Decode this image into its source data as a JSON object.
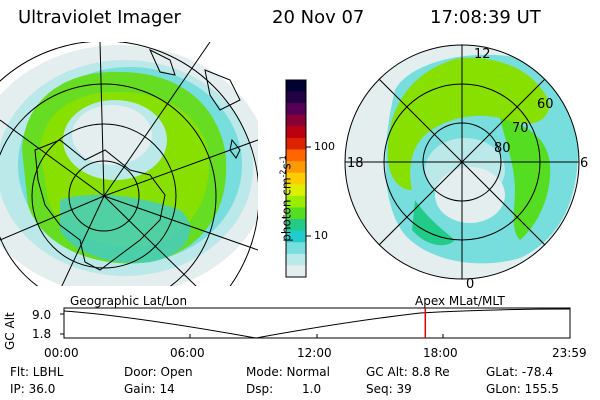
{
  "header": {
    "instrument": "Ultraviolet Imager",
    "date": "20 Nov 07",
    "time": "17:08:39 UT"
  },
  "colorbar": {
    "label": "photon cm",
    "exp1": "-2",
    "mid": "s",
    "exp2": "-1",
    "ticks": [
      "100",
      "10"
    ],
    "colors": [
      "#000033",
      "#220044",
      "#550055",
      "#880033",
      "#bb0011",
      "#dd2200",
      "#ff6600",
      "#ff9900",
      "#ffcc00",
      "#ddee00",
      "#99ee00",
      "#55dd22",
      "#22cc88",
      "#22cccc",
      "#77dddd",
      "#bbe8e8",
      "#e4eeee"
    ]
  },
  "left_map": {
    "label": "Geographic Lat/Lon"
  },
  "right_map": {
    "label": "Apex MLat/MLT",
    "mlt_labels": {
      "top": "12",
      "left": "18",
      "right": "6",
      "bottom": "0"
    },
    "lat_labels": [
      "60",
      "70",
      "80"
    ]
  },
  "timeline": {
    "ylabel": "GC Alt",
    "ytop": "9.0",
    "ybottom": "1.8",
    "xticks": [
      "00:00",
      "06:00",
      "12:00",
      "18:00",
      "23:59"
    ],
    "current_time_fraction": 0.714,
    "marker_color": "#dd0000"
  },
  "info": {
    "flt": "Flt: LBHL",
    "ip": "IP: 36.0",
    "door": "Door: Open",
    "gain": "Gain: 14",
    "mode": "Mode: Normal",
    "dsp_label": "Dsp:",
    "dsp_value": "1.0",
    "gcalt": "GC Alt: 8.8 Re",
    "seq": "Seq: 39",
    "glat": "GLat: -78.4",
    "glon": "GLon: 155.5"
  }
}
